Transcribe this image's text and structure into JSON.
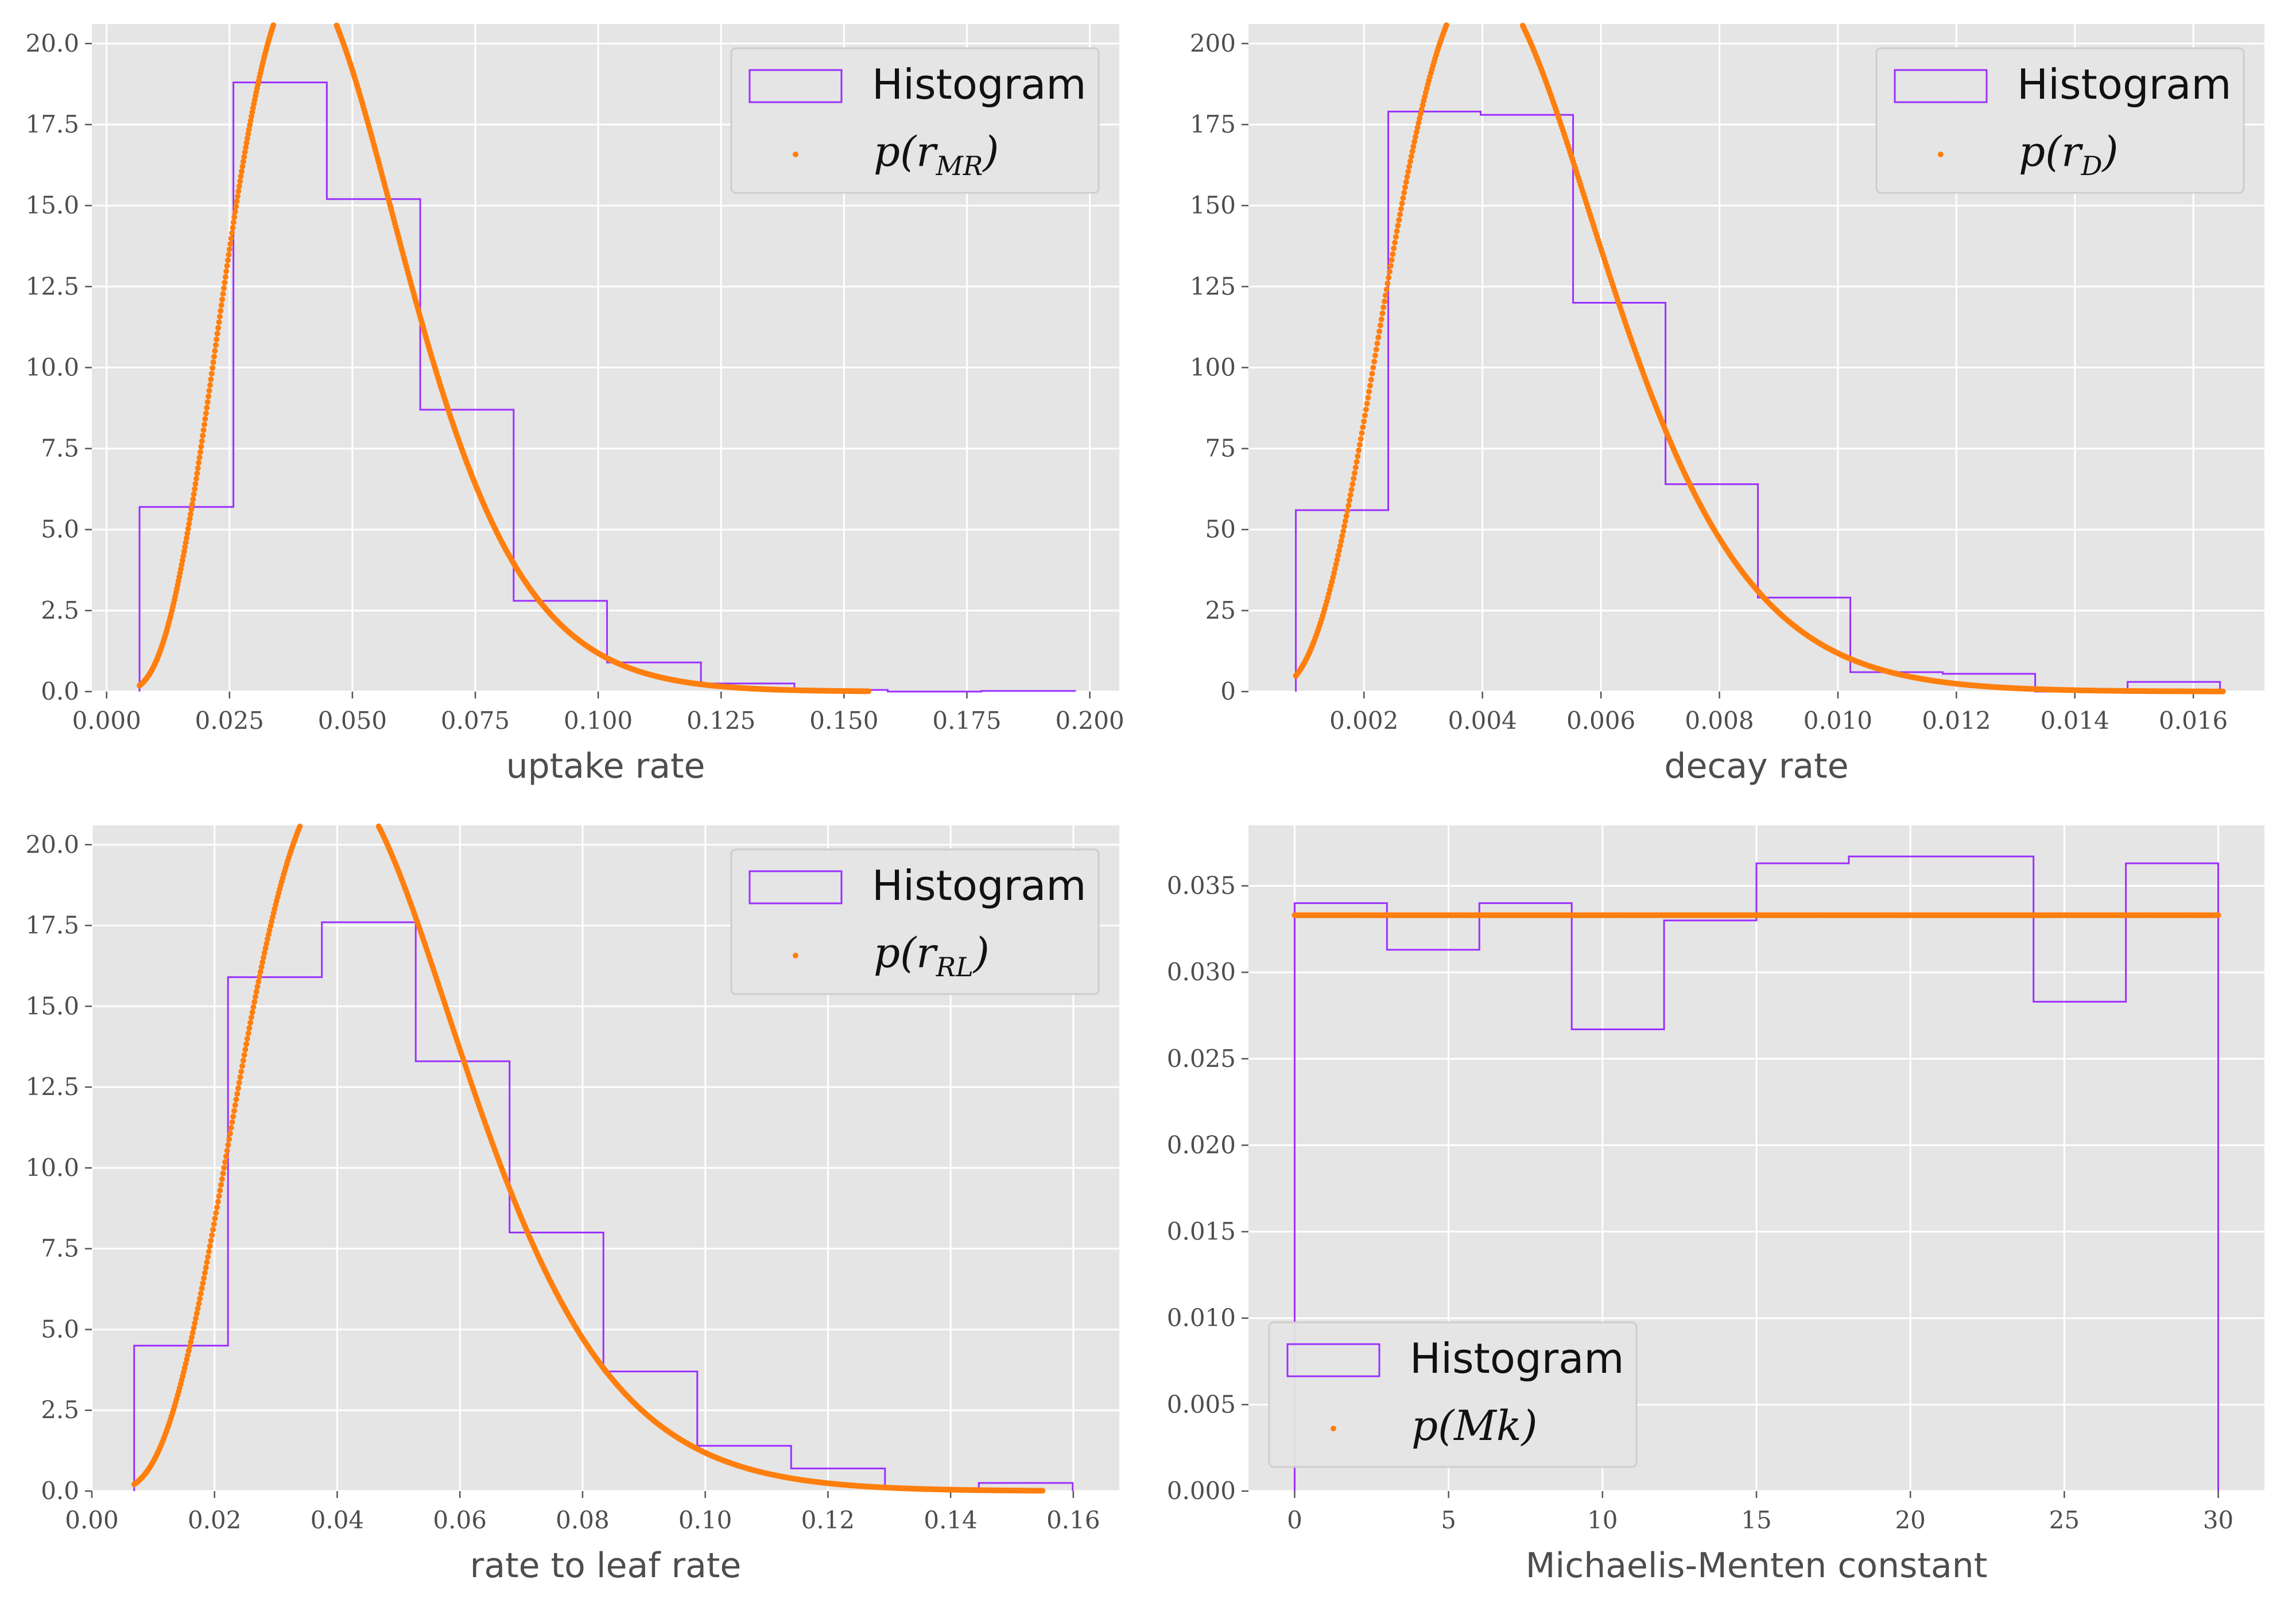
{
  "legend_labels": {
    "histogram": "Histogram",
    "p_mr": "p(r_{MR})",
    "p_d": "p(r_D)",
    "p_rl": "p(r_{RL})",
    "p_mk": "p(Mk)"
  },
  "colors": {
    "histogram": "#9b30ff",
    "pdf": "#ff7f0e",
    "panel_bg": "#e5e5e5",
    "grid": "#ffffff"
  },
  "chart_data": [
    {
      "type": "bar",
      "style": "step-histogram with fitted density points",
      "xlabel": "uptake rate",
      "ylabel": "",
      "xlim": [
        -0.003,
        0.206
      ],
      "ylim": [
        0,
        20.6
      ],
      "xticks": [
        "0.000",
        "0.025",
        "0.050",
        "0.075",
        "0.100",
        "0.125",
        "0.150",
        "0.175",
        "0.200"
      ],
      "yticks": [
        "0.0",
        "2.5",
        "5.0",
        "7.5",
        "10.0",
        "12.5",
        "15.0",
        "17.5",
        "20.0"
      ],
      "grid": true,
      "legend_position": "top-right",
      "histogram": {
        "name": "Histogram",
        "bin_edges": [
          0.0067,
          0.0258,
          0.0448,
          0.0638,
          0.0828,
          0.1018,
          0.1209,
          0.1399,
          0.1589,
          0.1779,
          0.197
        ],
        "values": [
          5.7,
          18.8,
          15.2,
          8.7,
          2.8,
          0.9,
          0.25,
          0.05,
          0.0,
          0.02
        ]
      },
      "pdf": {
        "name": "p(r_{MR})",
        "dist": "gamma",
        "shape": 6.0,
        "scale": 0.008,
        "x_range": [
          0.0067,
          0.155
        ]
      }
    },
    {
      "type": "bar",
      "style": "step-histogram with fitted density points",
      "xlabel": "decay rate",
      "ylabel": "",
      "xlim": [
        5e-05,
        0.0172
      ],
      "ylim": [
        0,
        206
      ],
      "xticks": [
        "0.002",
        "0.004",
        "0.006",
        "0.008",
        "0.010",
        "0.012",
        "0.014",
        "0.016"
      ],
      "yticks": [
        "0",
        "25",
        "50",
        "75",
        "100",
        "125",
        "150",
        "175",
        "200"
      ],
      "grid": true,
      "legend_position": "top-right",
      "histogram": {
        "name": "Histogram",
        "bin_edges": [
          0.00085,
          0.00241,
          0.00397,
          0.00553,
          0.00709,
          0.00865,
          0.01021,
          0.01177,
          0.01333,
          0.01489,
          0.01645
        ],
        "values": [
          56,
          179,
          178,
          120,
          64,
          29,
          6,
          5.5,
          0,
          3
        ]
      },
      "pdf": {
        "name": "p(r_D)",
        "dist": "gamma",
        "shape": 6.0,
        "scale": 0.0008,
        "x_range": [
          0.00085,
          0.0165
        ]
      }
    },
    {
      "type": "bar",
      "style": "step-histogram with fitted density points",
      "xlabel": "rate to leaf rate",
      "ylabel": "",
      "xlim": [
        0.0,
        0.1675
      ],
      "ylim": [
        0,
        20.6
      ],
      "xticks": [
        "0.00",
        "0.02",
        "0.04",
        "0.06",
        "0.08",
        "0.10",
        "0.12",
        "0.14",
        "0.16"
      ],
      "yticks": [
        "0.0",
        "2.5",
        "5.0",
        "7.5",
        "10.0",
        "12.5",
        "15.0",
        "17.5",
        "20.0"
      ],
      "grid": true,
      "legend_position": "top-right",
      "histogram": {
        "name": "Histogram",
        "bin_edges": [
          0.0069,
          0.0222,
          0.0375,
          0.0528,
          0.0681,
          0.0834,
          0.0987,
          0.114,
          0.1293,
          0.1446,
          0.1599
        ],
        "values": [
          4.5,
          15.9,
          17.6,
          13.3,
          8.0,
          3.7,
          1.4,
          0.7,
          0.05,
          0.25
        ]
      },
      "pdf": {
        "name": "p(r_{RL})",
        "dist": "gamma",
        "shape": 6.0,
        "scale": 0.008,
        "x_range": [
          0.0069,
          0.155
        ]
      }
    },
    {
      "type": "bar",
      "style": "step-histogram with fitted density points",
      "xlabel": "Michaelis-Menten constant",
      "ylabel": "",
      "xlim": [
        -1.5,
        31.5
      ],
      "ylim": [
        0,
        0.0385
      ],
      "xticks": [
        "0",
        "5",
        "10",
        "15",
        "20",
        "25",
        "30"
      ],
      "yticks": [
        "0.000",
        "0.005",
        "0.010",
        "0.015",
        "0.020",
        "0.025",
        "0.030",
        "0.035"
      ],
      "grid": true,
      "legend_position": "bottom-left",
      "histogram": {
        "name": "Histogram",
        "bin_edges": [
          0,
          3,
          6,
          9,
          12,
          15,
          18,
          21,
          24,
          27,
          30
        ],
        "values": [
          0.034,
          0.0313,
          0.034,
          0.0267,
          0.033,
          0.0363,
          0.0367,
          0.0367,
          0.0283,
          0.0363
        ]
      },
      "pdf": {
        "name": "p(Mk)",
        "dist": "uniform",
        "value": 0.0333,
        "x_range": [
          0,
          30
        ]
      }
    }
  ]
}
